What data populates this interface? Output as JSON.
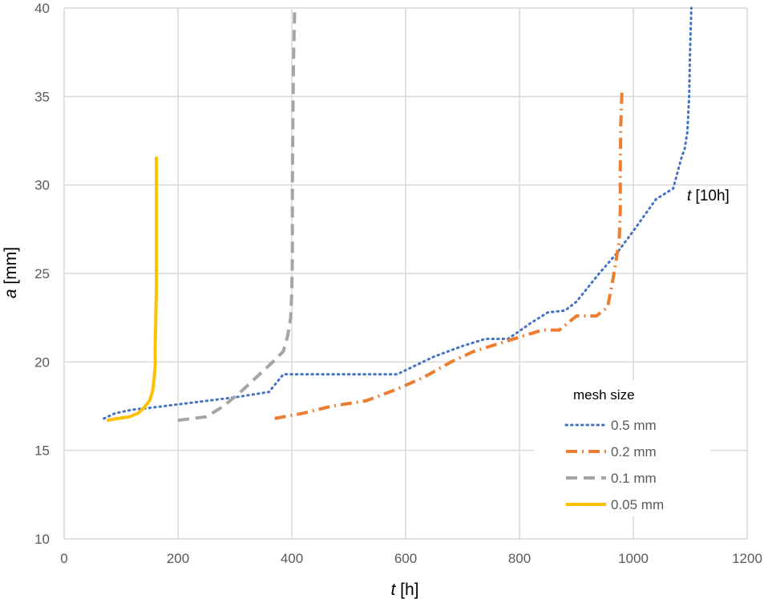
{
  "chart_data": {
    "type": "line",
    "xlabel": {
      "italic": "t",
      "rest": " [h]"
    },
    "ylabel": {
      "italic": "a",
      "rest": " [mm]"
    },
    "xlim": [
      0,
      1200
    ],
    "ylim": [
      10,
      40
    ],
    "xticks": [
      0,
      200,
      400,
      600,
      800,
      1000,
      1200
    ],
    "yticks": [
      10,
      15,
      20,
      25,
      30,
      35,
      40
    ],
    "grid": true,
    "annotation": {
      "italic": "t",
      "rest": " [10h]"
    },
    "legend": {
      "title": "mesh size",
      "placement": "bottom-right"
    },
    "series": [
      {
        "name": "0.5 mm",
        "color": "#4472C4",
        "style": "dotted",
        "points": [
          [
            70,
            16.8
          ],
          [
            90,
            17.1
          ],
          [
            120,
            17.3
          ],
          [
            150,
            17.4
          ],
          [
            200,
            17.6
          ],
          [
            250,
            17.8
          ],
          [
            300,
            18.0
          ],
          [
            360,
            18.3
          ],
          [
            385,
            19.3
          ],
          [
            450,
            19.3
          ],
          [
            520,
            19.3
          ],
          [
            585,
            19.3
          ],
          [
            650,
            20.3
          ],
          [
            700,
            20.9
          ],
          [
            740,
            21.3
          ],
          [
            780,
            21.3
          ],
          [
            820,
            22.2
          ],
          [
            850,
            22.8
          ],
          [
            880,
            22.9
          ],
          [
            900,
            23.4
          ],
          [
            940,
            25.0
          ],
          [
            970,
            26.1
          ],
          [
            1000,
            27.4
          ],
          [
            1040,
            29.2
          ],
          [
            1070,
            29.8
          ],
          [
            1085,
            31.6
          ],
          [
            1090,
            32.0
          ],
          [
            1095,
            33.0
          ],
          [
            1098,
            35.0
          ],
          [
            1100,
            38.0
          ],
          [
            1102,
            40.0
          ]
        ]
      },
      {
        "name": "0.2 mm",
        "color": "#ED7D31",
        "style": "dashdot",
        "points": [
          [
            370,
            16.8
          ],
          [
            420,
            17.1
          ],
          [
            470,
            17.5
          ],
          [
            530,
            17.8
          ],
          [
            580,
            18.4
          ],
          [
            630,
            19.1
          ],
          [
            680,
            20.0
          ],
          [
            720,
            20.6
          ],
          [
            760,
            21.0
          ],
          [
            800,
            21.4
          ],
          [
            840,
            21.8
          ],
          [
            870,
            21.8
          ],
          [
            900,
            22.6
          ],
          [
            935,
            22.6
          ],
          [
            955,
            23.1
          ],
          [
            965,
            24.8
          ],
          [
            975,
            26.8
          ],
          [
            977,
            28.5
          ],
          [
            977,
            31.0
          ],
          [
            978,
            33.5
          ],
          [
            980,
            35.3
          ]
        ]
      },
      {
        "name": "0.1 mm",
        "color": "#A5A5A5",
        "style": "dashed",
        "points": [
          [
            200,
            16.7
          ],
          [
            250,
            16.9
          ],
          [
            280,
            17.5
          ],
          [
            310,
            18.3
          ],
          [
            340,
            19.2
          ],
          [
            370,
            20.1
          ],
          [
            385,
            20.6
          ],
          [
            393,
            21.5
          ],
          [
            398,
            22.5
          ],
          [
            400,
            24.0
          ],
          [
            401,
            26.0
          ],
          [
            401,
            30.0
          ],
          [
            402,
            34.0
          ],
          [
            403,
            37.0
          ],
          [
            405,
            40.0
          ]
        ]
      },
      {
        "name": "0.05 mm",
        "color": "#FFC000",
        "style": "solid",
        "points": [
          [
            75,
            16.7
          ],
          [
            95,
            16.8
          ],
          [
            115,
            16.9
          ],
          [
            130,
            17.1
          ],
          [
            140,
            17.4
          ],
          [
            150,
            17.8
          ],
          [
            155,
            18.3
          ],
          [
            158,
            19.0
          ],
          [
            160,
            19.8
          ],
          [
            160,
            21.0
          ],
          [
            161,
            22.3
          ],
          [
            161,
            22.5
          ],
          [
            162,
            24.0
          ],
          [
            162,
            27.0
          ],
          [
            162,
            30.0
          ],
          [
            162,
            31.6
          ]
        ]
      }
    ]
  }
}
